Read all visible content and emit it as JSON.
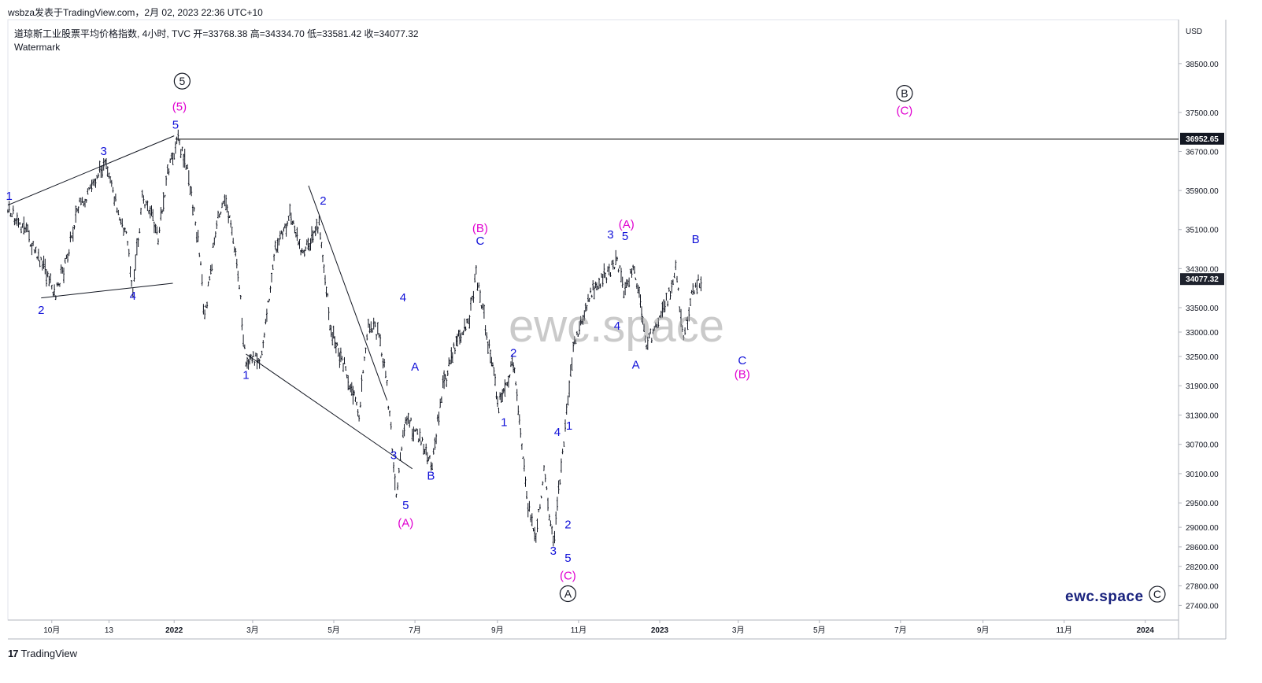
{
  "header": {
    "published_by": "wsbza发表于TradingView.com，2月 02, 2023 22:36 UTC+10"
  },
  "legend": {
    "symbol_line": "道琼斯工业股票平均价格指数, 4小时, TVC  开=33768.38  高=34334.70  低=33581.42  收=34077.32",
    "watermark_label": "Watermark"
  },
  "footer": {
    "brand": "TradingView",
    "logo_glyph": "17"
  },
  "site_brand": "ewc.space",
  "colors": {
    "candles": "#131722",
    "wave_blue": "#1010d8",
    "wave_magenta": "#e000d0",
    "circled": "#131722",
    "grid_axis": "#b2b5be",
    "level_line": "#000000",
    "price_tag_bg": "#131722",
    "current_tag_bg": "#1e222d"
  },
  "chart_data": {
    "type": "candlestick",
    "title": "道琼斯工业股票平均价格指数",
    "timeframe": "4小时",
    "source": "TVC",
    "ohlc_last": {
      "open": 33768.38,
      "high": 34334.7,
      "low": 33581.42,
      "close": 34077.32
    },
    "y_axis": {
      "unit_label": "USD",
      "ticks": [
        38500,
        37500,
        36700,
        35900,
        35100,
        34300,
        33500,
        33000,
        32500,
        31900,
        31300,
        30700,
        30100,
        29500,
        29000,
        28600,
        28200,
        27800,
        27400
      ],
      "tick_labels": [
        "38500.00",
        "37500.00",
        "36700.00",
        "35900.00",
        "35100.00",
        "34300.00",
        "33500.00",
        "33000.00",
        "32500.00",
        "31900.00",
        "31300.00",
        "30700.00",
        "30100.00",
        "29500.00",
        "29000.00",
        "28600.00",
        "28200.00",
        "27800.00",
        "27400.00"
      ],
      "range": [
        27100,
        39400
      ]
    },
    "x_axis": {
      "tick_labels": [
        "10月",
        "13",
        "2022",
        "3月",
        "5月",
        "7月",
        "9月",
        "11月",
        "2023",
        "3月",
        "5月",
        "7月",
        "9月",
        "11月",
        "2024"
      ],
      "bold_ticks": [
        "2022",
        "2023",
        "2024"
      ],
      "range": [
        "2021-08-29",
        "2024-01-26"
      ],
      "tick_dates": [
        "2021-10-01",
        "2021-11-13",
        "2022-01-01",
        "2022-03-01",
        "2022-05-01",
        "2022-07-01",
        "2022-09-01",
        "2022-11-01",
        "2023-01-01",
        "2023-03-01",
        "2023-05-01",
        "2023-07-01",
        "2023-09-01",
        "2023-11-01",
        "2024-01-01"
      ]
    },
    "price_path": [
      [
        "2021-08-29",
        35500
      ],
      [
        "2021-09-05",
        35300
      ],
      [
        "2021-09-12",
        35100
      ],
      [
        "2021-09-19",
        34600
      ],
      [
        "2021-09-26",
        34300
      ],
      [
        "2021-10-04",
        33800
      ],
      [
        "2021-10-12",
        34500
      ],
      [
        "2021-10-20",
        35500
      ],
      [
        "2021-10-28",
        35800
      ],
      [
        "2021-11-05",
        36300
      ],
      [
        "2021-11-10",
        36400
      ],
      [
        "2021-11-18",
        35700
      ],
      [
        "2021-11-26",
        35000
      ],
      [
        "2021-12-01",
        33900
      ],
      [
        "2021-12-08",
        35700
      ],
      [
        "2021-12-15",
        35500
      ],
      [
        "2021-12-20",
        34900
      ],
      [
        "2021-12-27",
        36300
      ],
      [
        "2022-01-04",
        36950
      ],
      [
        "2022-01-12",
        36200
      ],
      [
        "2022-01-20",
        34700
      ],
      [
        "2022-01-24",
        33300
      ],
      [
        "2022-02-02",
        35300
      ],
      [
        "2022-02-09",
        35700
      ],
      [
        "2022-02-18",
        34300
      ],
      [
        "2022-02-24",
        32300
      ],
      [
        "2022-03-08",
        32600
      ],
      [
        "2022-03-18",
        34700
      ],
      [
        "2022-03-29",
        35400
      ],
      [
        "2022-04-08",
        34600
      ],
      [
        "2022-04-20",
        35200
      ],
      [
        "2022-04-29",
        33000
      ],
      [
        "2022-05-09",
        32300
      ],
      [
        "2022-05-20",
        31300
      ],
      [
        "2022-05-27",
        33200
      ],
      [
        "2022-06-03",
        33000
      ],
      [
        "2022-06-10",
        31900
      ],
      [
        "2022-06-17",
        29700
      ],
      [
        "2022-06-24",
        31300
      ],
      [
        "2022-07-01",
        31000
      ],
      [
        "2022-07-14",
        30300
      ],
      [
        "2022-07-22",
        31900
      ],
      [
        "2022-08-01",
        32800
      ],
      [
        "2022-08-10",
        33200
      ],
      [
        "2022-08-16",
        34200
      ],
      [
        "2022-08-24",
        33000
      ],
      [
        "2022-09-02",
        31500
      ],
      [
        "2022-09-13",
        32400
      ],
      [
        "2022-09-23",
        29600
      ],
      [
        "2022-09-30",
        28800
      ],
      [
        "2022-10-06",
        30200
      ],
      [
        "2022-10-13",
        28660
      ],
      [
        "2022-10-20",
        30500
      ],
      [
        "2022-10-28",
        32700
      ],
      [
        "2022-11-10",
        33800
      ],
      [
        "2022-11-22",
        34200
      ],
      [
        "2022-11-30",
        34500
      ],
      [
        "2022-12-05",
        33900
      ],
      [
        "2022-12-13",
        34300
      ],
      [
        "2022-12-22",
        32800
      ],
      [
        "2022-12-30",
        33100
      ],
      [
        "2023-01-06",
        33600
      ],
      [
        "2023-01-13",
        34300
      ],
      [
        "2023-01-19",
        32900
      ],
      [
        "2023-01-26",
        33900
      ],
      [
        "2023-02-02",
        34077
      ]
    ],
    "horizontal_level": {
      "value": 36952.65,
      "label": "36952.65"
    },
    "current_price": {
      "value": 34077.32,
      "label": "34077.32"
    },
    "trendlines": [
      {
        "from": [
          "2021-08-29",
          35600
        ],
        "to": [
          "2022-01-01",
          37020
        ]
      },
      {
        "from": [
          "2021-09-23",
          33700
        ],
        "to": [
          "2021-12-31",
          34000
        ]
      },
      {
        "from": [
          "2022-04-12",
          36000
        ],
        "to": [
          "2022-06-10",
          31600
        ]
      },
      {
        "from": [
          "2022-02-24",
          32550
        ],
        "to": [
          "2022-06-29",
          30200
        ]
      }
    ],
    "wave_labels": [
      {
        "text": "1",
        "date": "2021-08-30",
        "price": 35710,
        "color": "blue"
      },
      {
        "text": "2",
        "date": "2021-09-23",
        "price": 33370,
        "color": "blue"
      },
      {
        "text": "3",
        "date": "2021-11-09",
        "price": 36630,
        "color": "blue"
      },
      {
        "text": "4",
        "date": "2021-12-01",
        "price": 33660,
        "color": "blue"
      },
      {
        "text": "5",
        "date": "2022-01-02",
        "price": 37170,
        "color": "blue"
      },
      {
        "text": "(5)",
        "date": "2022-01-05",
        "price": 37540,
        "color": "magenta"
      },
      {
        "text": "⑤",
        "date": "2022-01-07",
        "price": 38060,
        "color": "black"
      },
      {
        "text": "1",
        "date": "2022-02-24",
        "price": 32040,
        "color": "blue"
      },
      {
        "text": "2",
        "date": "2022-04-23",
        "price": 35610,
        "color": "blue"
      },
      {
        "text": "3",
        "date": "2022-06-15",
        "price": 30400,
        "color": "blue"
      },
      {
        "text": "4",
        "date": "2022-06-22",
        "price": 33630,
        "color": "blue"
      },
      {
        "text": "5",
        "date": "2022-06-24",
        "price": 29370,
        "color": "blue"
      },
      {
        "text": "(A)",
        "date": "2022-06-24",
        "price": 29010,
        "color": "magenta"
      },
      {
        "text": "A",
        "date": "2022-07-01",
        "price": 32210,
        "color": "blue"
      },
      {
        "text": "B",
        "date": "2022-07-13",
        "price": 29980,
        "color": "blue"
      },
      {
        "text": "C",
        "date": "2022-08-19",
        "price": 34790,
        "color": "blue"
      },
      {
        "text": "(B)",
        "date": "2022-08-19",
        "price": 35050,
        "color": "magenta"
      },
      {
        "text": "1",
        "date": "2022-09-06",
        "price": 31070,
        "color": "blue"
      },
      {
        "text": "2",
        "date": "2022-09-13",
        "price": 32490,
        "color": "blue"
      },
      {
        "text": "3",
        "date": "2022-10-13",
        "price": 28440,
        "color": "blue"
      },
      {
        "text": "4",
        "date": "2022-10-16",
        "price": 30870,
        "color": "blue"
      },
      {
        "text": "1",
        "date": "2022-10-25",
        "price": 31000,
        "color": "blue"
      },
      {
        "text": "2",
        "date": "2022-10-24",
        "price": 28980,
        "color": "blue"
      },
      {
        "text": "5",
        "date": "2022-10-24",
        "price": 28290,
        "color": "blue"
      },
      {
        "text": "(C)",
        "date": "2022-10-24",
        "price": 27930,
        "color": "magenta"
      },
      {
        "text": "Ⓐ",
        "date": "2022-10-24",
        "price": 27560,
        "color": "black"
      },
      {
        "text": "3",
        "date": "2022-11-25",
        "price": 34920,
        "color": "blue"
      },
      {
        "text": "5",
        "date": "2022-12-06",
        "price": 34890,
        "color": "blue"
      },
      {
        "text": "(A)",
        "date": "2022-12-07",
        "price": 35130,
        "color": "magenta"
      },
      {
        "text": "4",
        "date": "2022-11-30",
        "price": 33050,
        "color": "blue"
      },
      {
        "text": "A",
        "date": "2022-12-14",
        "price": 32250,
        "color": "blue"
      },
      {
        "text": "B",
        "date": "2023-01-28",
        "price": 34820,
        "color": "blue"
      },
      {
        "text": "C",
        "date": "2023-03-04",
        "price": 32340,
        "color": "blue"
      },
      {
        "text": "(B)",
        "date": "2023-03-04",
        "price": 32060,
        "color": "magenta"
      },
      {
        "text": "Ⓑ",
        "date": "2023-07-04",
        "price": 37810,
        "color": "black"
      },
      {
        "text": "(C)",
        "date": "2023-07-04",
        "price": 37460,
        "color": "magenta"
      },
      {
        "text": "Ⓒ",
        "date": "2024-01-10",
        "price": 27550,
        "color": "black"
      }
    ]
  }
}
